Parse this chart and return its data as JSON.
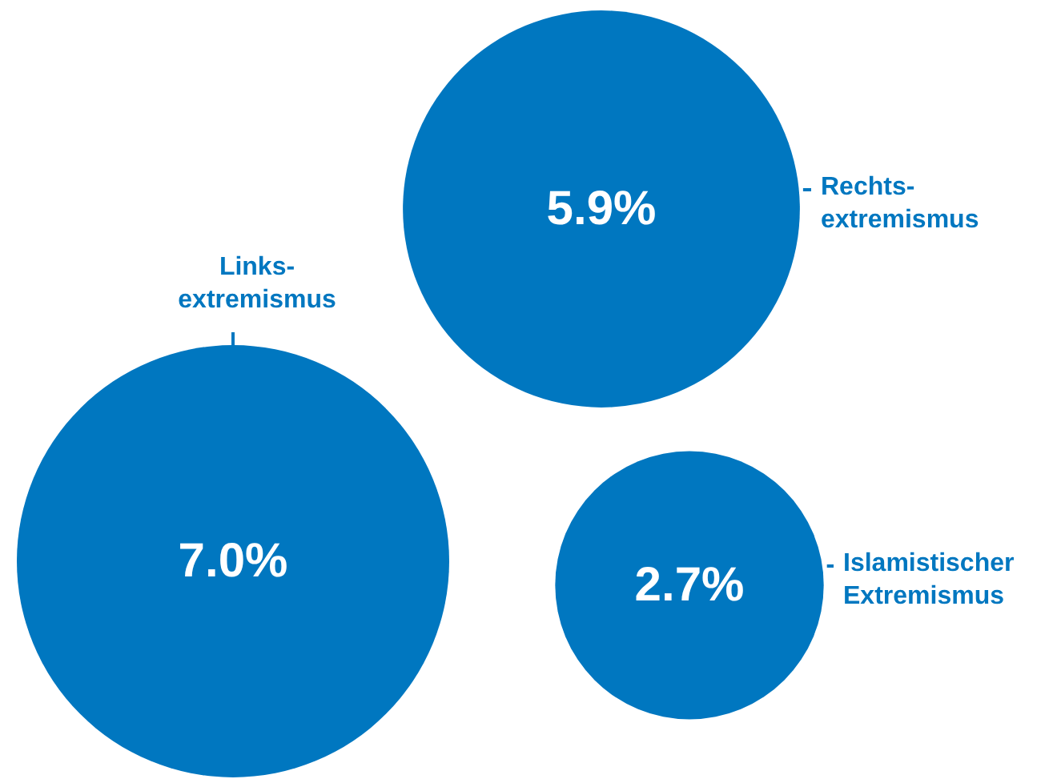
{
  "chart_data": {
    "type": "other",
    "categories": [
      "Links-\nextremismus",
      "Rechts-\nextremismus",
      "Islamistischer\nExtremismus"
    ],
    "values": [
      7.0,
      5.9,
      2.7
    ],
    "value_labels": [
      "7.0%",
      "5.9%",
      "2.7%"
    ],
    "color": "#0077c0"
  }
}
